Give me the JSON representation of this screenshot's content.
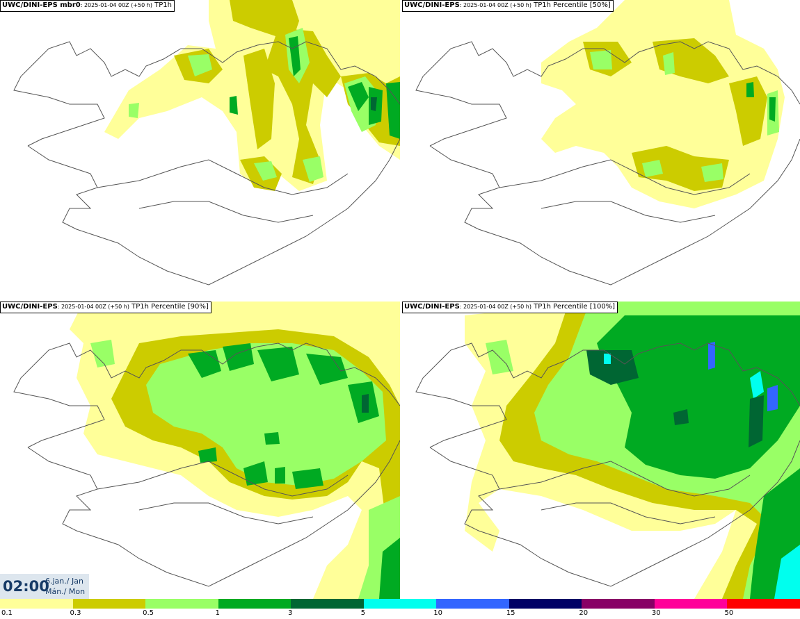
{
  "panels": [
    {
      "model": "UWC/DINI-EPS mbr0",
      "run": ": 2025-01-04 00Z (+50 h)",
      "field": " TP1h"
    },
    {
      "model": "UWC/DINI-EPS",
      "run": ": 2025-01-04 00Z (+50 h)",
      "field": " TP1h Percentile [50%]"
    },
    {
      "model": "UWC/DINI-EPS",
      "run": ": 2025-01-04 00Z (+50 h)",
      "field": " TP1h Percentile [90%]"
    },
    {
      "model": "UWC/DINI-EPS",
      "run": ": 2025-01-04 00Z (+50 h)",
      "field": " TP1h Percentile [100%]"
    }
  ],
  "time": {
    "clock": "02:00",
    "date": "6.jan./ Jan",
    "weekday": "Mán./ Mon"
  },
  "legend": {
    "colors": [
      "#ffff99",
      "#cccc00",
      "#99ff66",
      "#00aa22",
      "#006633",
      "#00ffee",
      "#3366ff",
      "#000066",
      "#880066",
      "#ff0099",
      "#ff0000"
    ],
    "ticks": [
      "0.1",
      "0.3",
      "0.5",
      "1",
      "3",
      "5",
      "10",
      "15",
      "20",
      "30",
      "50"
    ]
  }
}
